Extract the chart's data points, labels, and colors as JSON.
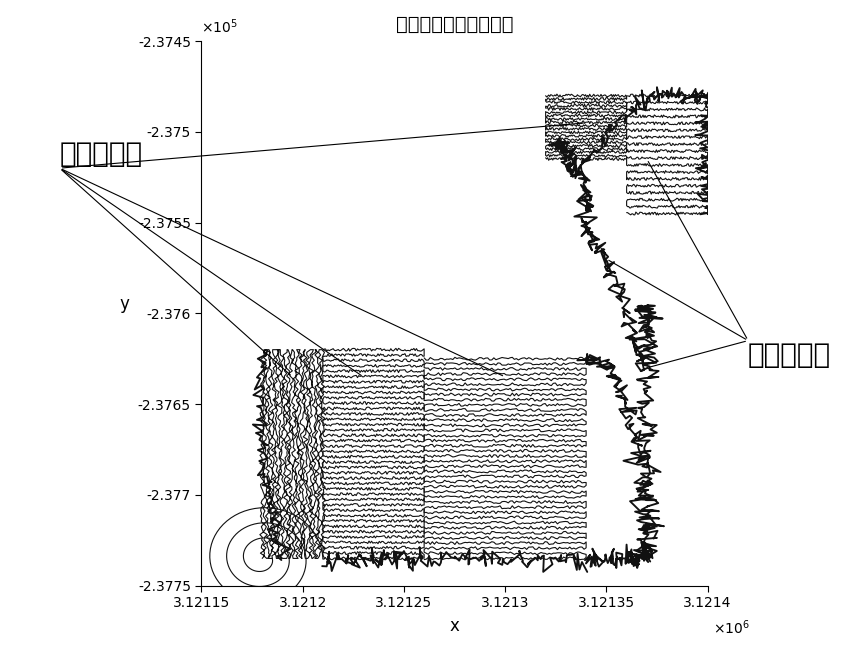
{
  "title": "农机运行轨迹二维图像",
  "xlabel": "x",
  "ylabel": "y",
  "xlim": [
    3121150.0,
    3121400.0
  ],
  "ylim": [
    -237750.0,
    -237450.0
  ],
  "xticks": [
    3121150.0,
    3121200.0,
    3121250.0,
    3121300.0,
    3121350.0,
    3121400.0
  ],
  "xtick_labels": [
    "3.12115",
    "3.1212",
    "3.12125",
    "3.1213",
    "3.12135",
    "3.1214"
  ],
  "yticks": [
    -237450.0,
    -237500.0,
    -237550.0,
    -237600.0,
    -237650.0,
    -237700.0,
    -237750.0
  ],
  "ytick_labels": [
    "-2.3745",
    "-2.375",
    "-2.3755",
    "-2.376",
    "-2.3765",
    "-2.377",
    "-2.3775"
  ],
  "line_color": "#111111",
  "line_width": 1.5,
  "bg_color": "#ffffff",
  "annotation1_text": "作业路径点",
  "annotation2_text": "行驶路径点"
}
